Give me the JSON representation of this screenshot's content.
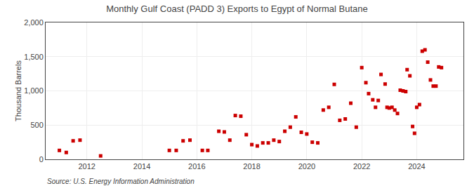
{
  "chart_data": {
    "type": "scatter",
    "title": "Monthly Gulf Coast (PADD 3) Exports to Egypt of Normal Butane",
    "ylabel": "Thousand Barrels",
    "annotations": [
      "Source: U.S. Energy Information Administration"
    ],
    "color": "#cc0000",
    "marker": "square",
    "grid": true,
    "xlim": [
      2010.5,
      2025.7
    ],
    "xticks": [
      2012,
      2014,
      2016,
      2018,
      2020,
      2022,
      2024
    ],
    "ylim": [
      0,
      2000
    ],
    "yticks": [
      0,
      500,
      {
        "value": 1000,
        "label": "1,000"
      },
      {
        "value": 1500,
        "label": "1,500"
      },
      {
        "value": 2000,
        "label": "2,000"
      }
    ],
    "x": [
      2011.0,
      2011.25,
      2011.5,
      2011.75,
      2012.5,
      2015.0,
      2015.25,
      2015.5,
      2015.75,
      2016.2,
      2016.4,
      2016.8,
      2017.0,
      2017.2,
      2017.4,
      2017.6,
      2017.8,
      2018.0,
      2018.2,
      2018.4,
      2018.6,
      2018.8,
      2019.0,
      2019.2,
      2019.4,
      2019.6,
      2019.8,
      2020.0,
      2020.2,
      2020.4,
      2020.6,
      2020.8,
      2021.0,
      2021.2,
      2021.4,
      2021.6,
      2021.8,
      2022.0,
      2022.15,
      2022.25,
      2022.4,
      2022.5,
      2022.6,
      2022.7,
      2022.85,
      2022.92,
      2023.0,
      2023.1,
      2023.2,
      2023.3,
      2023.4,
      2023.5,
      2023.6,
      2023.65,
      2023.75,
      2023.85,
      2023.92,
      2024.0,
      2024.1,
      2024.2,
      2024.3,
      2024.4,
      2024.5,
      2024.6,
      2024.7,
      2024.8,
      2024.9
    ],
    "values": [
      130,
      100,
      270,
      280,
      50,
      130,
      130,
      270,
      280,
      130,
      130,
      410,
      400,
      280,
      640,
      630,
      360,
      215,
      195,
      240,
      240,
      280,
      260,
      410,
      470,
      620,
      395,
      370,
      250,
      240,
      720,
      760,
      1095,
      570,
      590,
      820,
      470,
      1340,
      1120,
      960,
      870,
      760,
      860,
      1240,
      1100,
      760,
      750,
      760,
      720,
      670,
      1010,
      1000,
      990,
      1310,
      1220,
      480,
      380,
      760,
      800,
      1580,
      1600,
      1420,
      1160,
      1070,
      1070,
      1350,
      1340
    ]
  }
}
